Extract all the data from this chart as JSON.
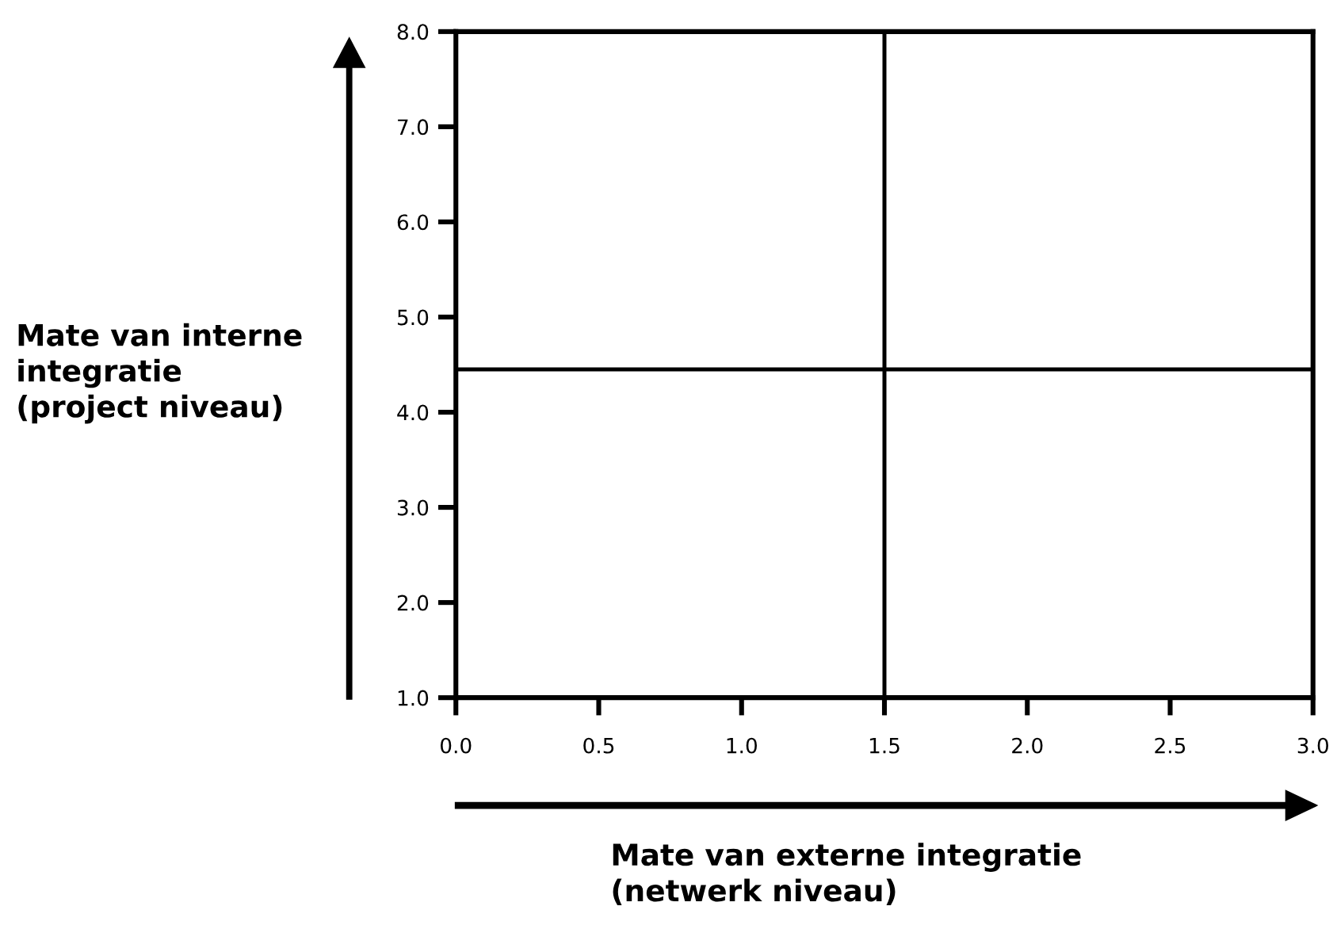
{
  "chart_data": {
    "type": "scatter",
    "xlabel": "Mate van externe integratie\n(netwerk niveau)",
    "ylabel": "Mate van interne\nintegratie\n(project niveau)",
    "xlim": [
      0,
      3
    ],
    "ylim": [
      1,
      8
    ],
    "xticks": [
      {
        "value": 0,
        "label": "0.0"
      },
      {
        "value": 0.5,
        "label": "0.5"
      },
      {
        "value": 1,
        "label": "1.0"
      },
      {
        "value": 1.5,
        "label": "1.5"
      },
      {
        "value": 2,
        "label": "2.0"
      },
      {
        "value": 2.5,
        "label": "2.5"
      },
      {
        "value": 3,
        "label": "3.0"
      }
    ],
    "yticks": [
      {
        "value": 1,
        "label": "1.0"
      },
      {
        "value": 2,
        "label": "2.0"
      },
      {
        "value": 3,
        "label": "3.0"
      },
      {
        "value": 4,
        "label": "4.0"
      },
      {
        "value": 5,
        "label": "5.0"
      },
      {
        "value": 6,
        "label": "6.0"
      },
      {
        "value": 7,
        "label": "7.0"
      },
      {
        "value": 8,
        "label": "8.0"
      }
    ],
    "ref_lines": [
      {
        "axis": "x",
        "value": 1.5,
        "color": "#000000"
      },
      {
        "axis": "y",
        "value": 4.45,
        "color": "#000000"
      }
    ],
    "grid": false,
    "legend": false
  }
}
